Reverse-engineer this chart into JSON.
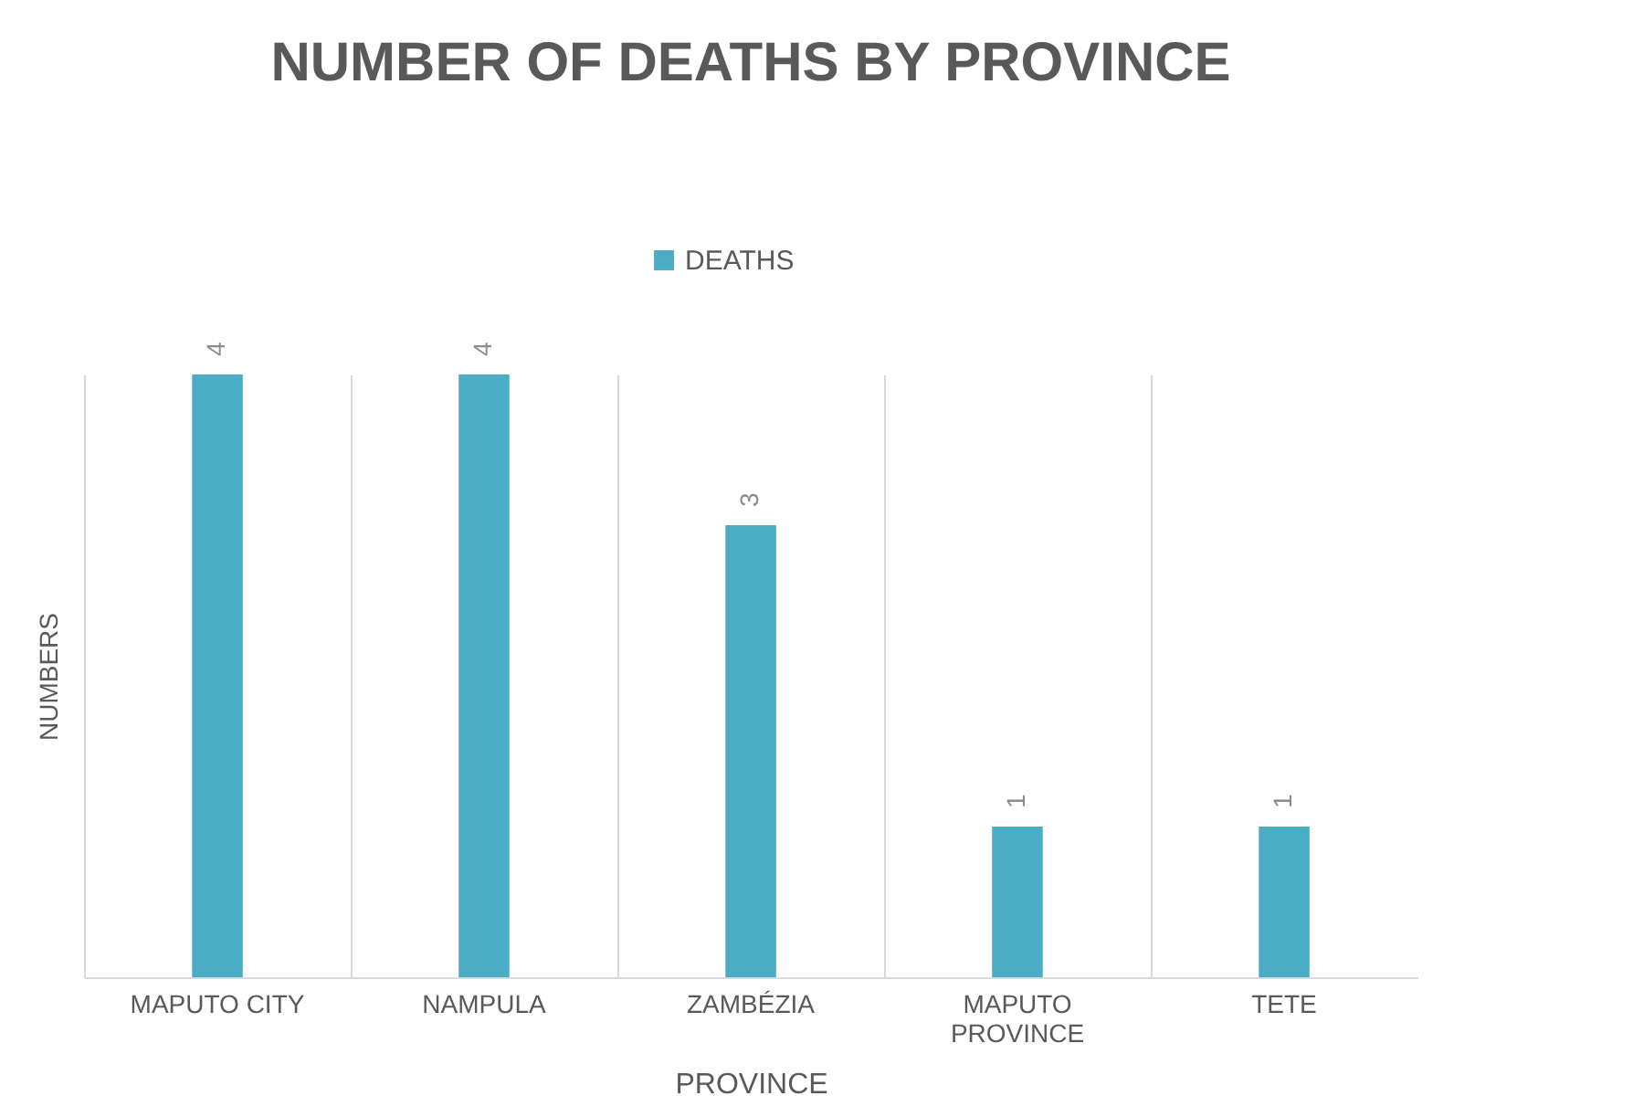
{
  "chart_data": {
    "type": "bar",
    "title": "NUMBER OF DEATHS BY PROVINCE",
    "xlabel": "PROVINCE",
    "ylabel": "NUMBERS",
    "categories": [
      "MAPUTO CITY",
      "NAMPULA",
      "ZAMBÉZIA",
      "MAPUTO PROVINCE",
      "TETE"
    ],
    "series": [
      {
        "name": "DEATHS",
        "color": "#4bacc6",
        "values": [
          4,
          4,
          3,
          1,
          1
        ]
      }
    ],
    "data_labels": true,
    "grid": "x",
    "legend": "top",
    "tick_labels": "x"
  }
}
